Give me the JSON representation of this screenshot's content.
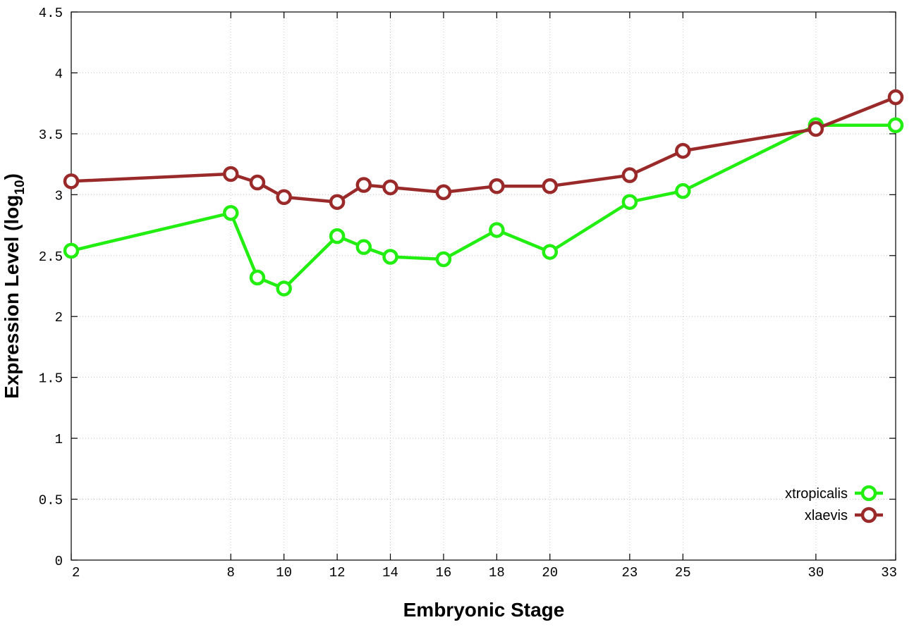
{
  "chart_data": {
    "type": "line",
    "xlabel": "Embryonic Stage",
    "ylabel_main": "Expression Level (log",
    "ylabel_sub": "10",
    "ylabel_end": ")",
    "xlim": [
      2,
      33
    ],
    "ylim": [
      0,
      4.5
    ],
    "x_ticks": [
      2,
      8,
      10,
      12,
      14,
      16,
      18,
      20,
      23,
      25,
      30,
      33
    ],
    "x_tick_labels": [
      "2",
      "8",
      "10",
      "12",
      "14",
      "16",
      "18",
      "20",
      "23",
      "25",
      "30",
      "33"
    ],
    "y_ticks": [
      0,
      0.5,
      1,
      1.5,
      2,
      2.5,
      3,
      3.5,
      4,
      4.5
    ],
    "y_tick_labels": [
      "0",
      "0.5",
      "1",
      "1.5",
      "2",
      "2.5",
      "3",
      "3.5",
      "4",
      "4.5"
    ],
    "grid": true,
    "legend_position": "bottom-right",
    "x": [
      2,
      8,
      9,
      10,
      12,
      13,
      14,
      16,
      18,
      20,
      23,
      25,
      30,
      33
    ],
    "series": [
      {
        "name": "xtropicalis",
        "color": "#22ee11",
        "values": [
          2.54,
          2.85,
          2.32,
          2.23,
          2.66,
          2.57,
          2.49,
          2.47,
          2.71,
          2.53,
          2.94,
          3.03,
          3.57,
          3.57
        ]
      },
      {
        "name": "xlaevis",
        "color": "#9a2a2a",
        "values": [
          3.11,
          3.17,
          3.1,
          2.98,
          2.94,
          3.08,
          3.06,
          3.02,
          3.07,
          3.07,
          3.16,
          3.36,
          3.54,
          3.8
        ]
      }
    ]
  }
}
